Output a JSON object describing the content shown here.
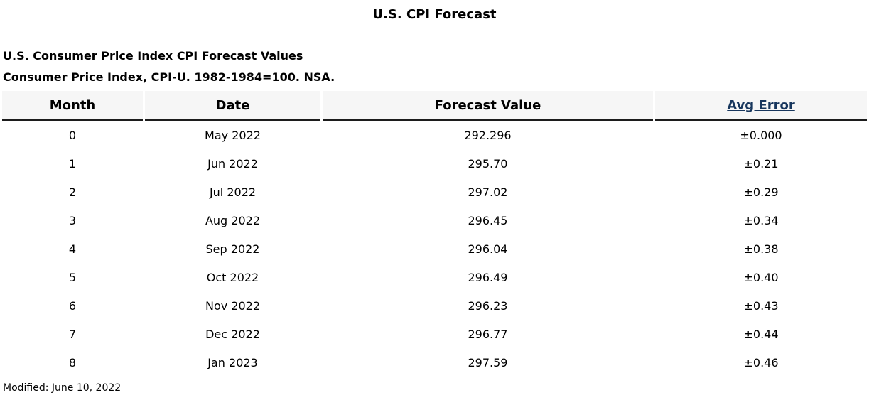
{
  "page": {
    "title": "U.S. CPI Forecast",
    "subtitle_line1": "U.S. Consumer Price Index CPI Forecast Values",
    "subtitle_line2": "Consumer Price Index, CPI-U. 1982-1984=100. NSA.",
    "modified": "Modified: June 10, 2022"
  },
  "table": {
    "headers": {
      "month": "Month",
      "date": "Date",
      "forecast_value": "Forecast Value",
      "avg_error": "Avg Error"
    },
    "rows": [
      {
        "month": "0",
        "date": "May 2022",
        "forecast": "292.296",
        "avg_error": "±0.000"
      },
      {
        "month": "1",
        "date": "Jun 2022",
        "forecast": "295.70",
        "avg_error": "±0.21"
      },
      {
        "month": "2",
        "date": "Jul 2022",
        "forecast": "297.02",
        "avg_error": "±0.29"
      },
      {
        "month": "3",
        "date": "Aug 2022",
        "forecast": "296.45",
        "avg_error": "±0.34"
      },
      {
        "month": "4",
        "date": "Sep 2022",
        "forecast": "296.04",
        "avg_error": "±0.38"
      },
      {
        "month": "5",
        "date": "Oct 2022",
        "forecast": "296.49",
        "avg_error": "±0.40"
      },
      {
        "month": "6",
        "date": "Nov 2022",
        "forecast": "296.23",
        "avg_error": "±0.43"
      },
      {
        "month": "7",
        "date": "Dec 2022",
        "forecast": "296.77",
        "avg_error": "±0.44"
      },
      {
        "month": "8",
        "date": "Jan 2023",
        "forecast": "297.59",
        "avg_error": "±0.46"
      }
    ]
  },
  "colors": {
    "link_navy": "#17365D",
    "header_bg": "#f6f6f6",
    "header_border": "#1c1c1c"
  }
}
